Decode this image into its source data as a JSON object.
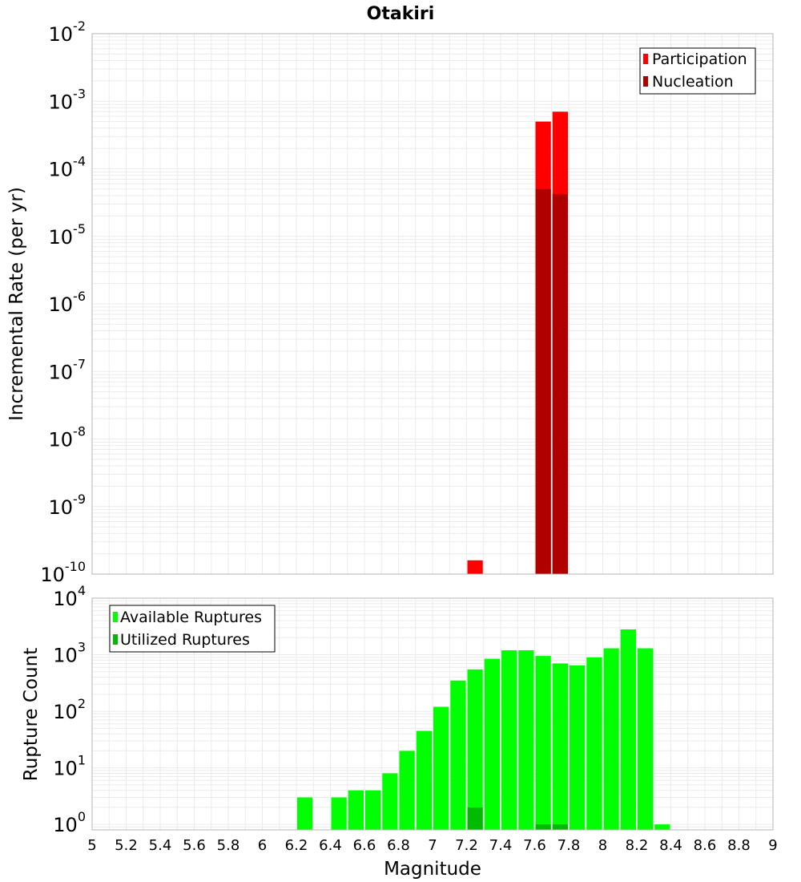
{
  "title": "Otakiri",
  "colors": {
    "participation": "#ff0000",
    "nucleation": "#b00000",
    "available": "#00ff00",
    "utilized": "#00bb00",
    "grid": "#ebebeb",
    "frame": "#b4b4b4"
  },
  "chart_data": [
    {
      "type": "bar",
      "ylabel": "Incremental Rate (per yr)",
      "xlabel": "",
      "yscale": "log",
      "ylim": [
        1e-10,
        0.01
      ],
      "xlim": [
        5,
        9
      ],
      "bin_width": 0.1,
      "grid": true,
      "legend_position": "top-right",
      "y_ticks": [
        {
          "exp": "-10"
        },
        {
          "exp": "-9"
        },
        {
          "exp": "-8"
        },
        {
          "exp": "-7"
        },
        {
          "exp": "-6"
        },
        {
          "exp": "-5"
        },
        {
          "exp": "-4"
        },
        {
          "exp": "-3"
        },
        {
          "exp": "-2"
        }
      ],
      "series": [
        {
          "name": "Participation",
          "color": "#ff0000",
          "x": [
            7.25,
            7.65,
            7.75
          ],
          "values": [
            1.6e-10,
            0.0005,
            0.0007
          ]
        },
        {
          "name": "Nucleation",
          "color": "#b00000",
          "x": [
            7.65,
            7.75
          ],
          "values": [
            5e-05,
            4.2e-05
          ]
        }
      ]
    },
    {
      "type": "bar",
      "ylabel": "Rupture Count",
      "xlabel": "Magnitude",
      "yscale": "log",
      "ylim": [
        0.8,
        10000
      ],
      "xlim": [
        5,
        9
      ],
      "bin_width": 0.1,
      "grid": true,
      "legend_position": "top-left",
      "x_tick_labels": [
        "5",
        "5.2",
        "5.4",
        "5.6",
        "5.8",
        "6",
        "6.2",
        "6.4",
        "6.6",
        "6.8",
        "7",
        "7.2",
        "7.4",
        "7.6",
        "7.8",
        "8",
        "8.2",
        "8.4",
        "8.6",
        "8.8",
        "9"
      ],
      "y_ticks": [
        {
          "exp": "0"
        },
        {
          "exp": "1"
        },
        {
          "exp": "2"
        },
        {
          "exp": "3"
        },
        {
          "exp": "4"
        }
      ],
      "series": [
        {
          "name": "Available Ruptures",
          "color": "#00ff00",
          "x": [
            6.25,
            6.45,
            6.55,
            6.65,
            6.75,
            6.85,
            6.95,
            7.05,
            7.15,
            7.25,
            7.35,
            7.45,
            7.55,
            7.65,
            7.75,
            7.85,
            7.95,
            8.05,
            8.15,
            8.25,
            8.35
          ],
          "values": [
            3,
            3,
            4,
            4,
            8,
            20,
            45,
            120,
            350,
            550,
            850,
            1200,
            1200,
            950,
            700,
            650,
            900,
            1300,
            2800,
            1300,
            1
          ]
        },
        {
          "name": "Utilized Ruptures",
          "color": "#00bb00",
          "x": [
            7.25,
            7.65,
            7.75
          ],
          "values": [
            2,
            1,
            1
          ]
        }
      ]
    }
  ]
}
